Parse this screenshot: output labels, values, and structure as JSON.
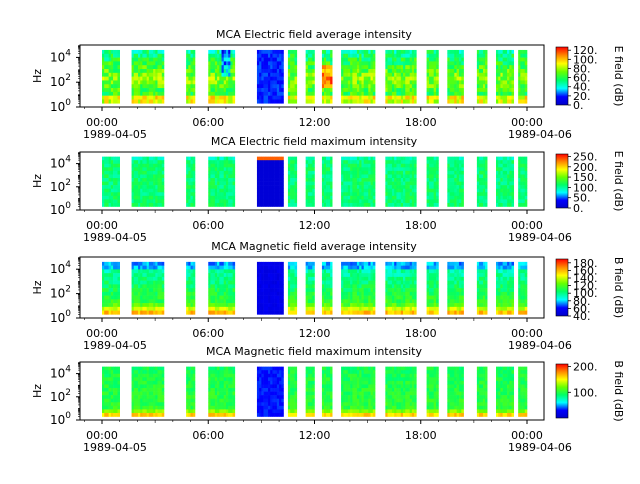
{
  "colorbar_gradient": [
    "#0000c8",
    "#0000ff",
    "#00ffff",
    "#00ff66",
    "#66ff00",
    "#ffff00",
    "#ff8800",
    "#ff0000"
  ],
  "chart_data": [
    {
      "type": "heatmap",
      "title": "MCA  Electric field average intensity",
      "ylabel": "Hz",
      "y_scale": "log",
      "y_ticks": [
        {
          "exp": "0",
          "pos": 1
        },
        {
          "exp": "2",
          "pos": 3
        },
        {
          "exp": "4",
          "pos": 5
        }
      ],
      "ylim_log10": [
        0,
        5
      ],
      "x_ticks": [
        "00:00",
        "06:00",
        "12:00",
        "18:00",
        "00:00"
      ],
      "date_start": "1989-04-05",
      "date_end": "1989-04-06",
      "colorbar": {
        "label": "E field (dB)",
        "ticks": [
          "0.",
          "20.",
          "40.",
          "60.",
          "80.",
          "100.",
          "120."
        ],
        "range": [
          0,
          127
        ]
      },
      "special": "avg_e"
    },
    {
      "type": "heatmap",
      "title": "MCA  Electric field maximum intensity",
      "ylabel": "Hz",
      "y_scale": "log",
      "y_ticks": [
        {
          "exp": "0",
          "pos": 1
        },
        {
          "exp": "2",
          "pos": 3
        },
        {
          "exp": "4",
          "pos": 5
        }
      ],
      "ylim_log10": [
        0,
        5
      ],
      "x_ticks": [
        "00:00",
        "06:00",
        "12:00",
        "18:00",
        "00:00"
      ],
      "date_start": "1989-04-05",
      "date_end": "1989-04-06",
      "colorbar": {
        "label": "E field (dB)",
        "ticks": [
          "0.",
          "50.",
          "100.",
          "150.",
          "200.",
          "250."
        ],
        "range": [
          0,
          262
        ]
      },
      "special": "max_e"
    },
    {
      "type": "heatmap",
      "title": "MCA  Magnetic field average intensity",
      "ylabel": "Hz",
      "y_scale": "log",
      "y_ticks": [
        {
          "exp": "0",
          "pos": 1
        },
        {
          "exp": "2",
          "pos": 3
        },
        {
          "exp": "4",
          "pos": 5
        }
      ],
      "ylim_log10": [
        0,
        5
      ],
      "x_ticks": [
        "00:00",
        "06:00",
        "12:00",
        "18:00",
        "00:00"
      ],
      "date_start": "1989-04-05",
      "date_end": "1989-04-06",
      "colorbar": {
        "label": "B field (dB)",
        "ticks": [
          "40.",
          "60.",
          "80.",
          "100.",
          "120.",
          "140.",
          "160.",
          "180."
        ],
        "range": [
          40,
          190
        ]
      },
      "special": "avg_b"
    },
    {
      "type": "heatmap",
      "title": "MCA  Magnetic field maximum intensity",
      "ylabel": "Hz",
      "y_scale": "log",
      "y_ticks": [
        {
          "exp": "0",
          "pos": 1
        },
        {
          "exp": "2",
          "pos": 3
        },
        {
          "exp": "4",
          "pos": 5
        }
      ],
      "ylim_log10": [
        0,
        5
      ],
      "x_ticks": [
        "00:00",
        "06:00",
        "12:00",
        "18:00",
        "00:00"
      ],
      "date_start": "1989-04-05",
      "date_end": "1989-04-06",
      "colorbar": {
        "label": "B field (dB)",
        "ticks": [
          "100.",
          "200."
        ],
        "range": [
          0,
          210
        ]
      },
      "special": "max_b"
    }
  ],
  "data_segments_utc_hours": [
    [
      0.0,
      1.0
    ],
    [
      1.67,
      3.5
    ],
    [
      4.75,
      5.25
    ],
    [
      6.0,
      7.5
    ],
    [
      8.75,
      10.25
    ],
    [
      10.5,
      11.0
    ],
    [
      11.5,
      12.0
    ],
    [
      12.42,
      13.0
    ],
    [
      13.5,
      15.42
    ],
    [
      16.0,
      17.75
    ],
    [
      18.33,
      19.0
    ],
    [
      19.5,
      20.42
    ],
    [
      21.17,
      21.75
    ],
    [
      22.25,
      23.25
    ],
    [
      23.5,
      24.0
    ]
  ]
}
